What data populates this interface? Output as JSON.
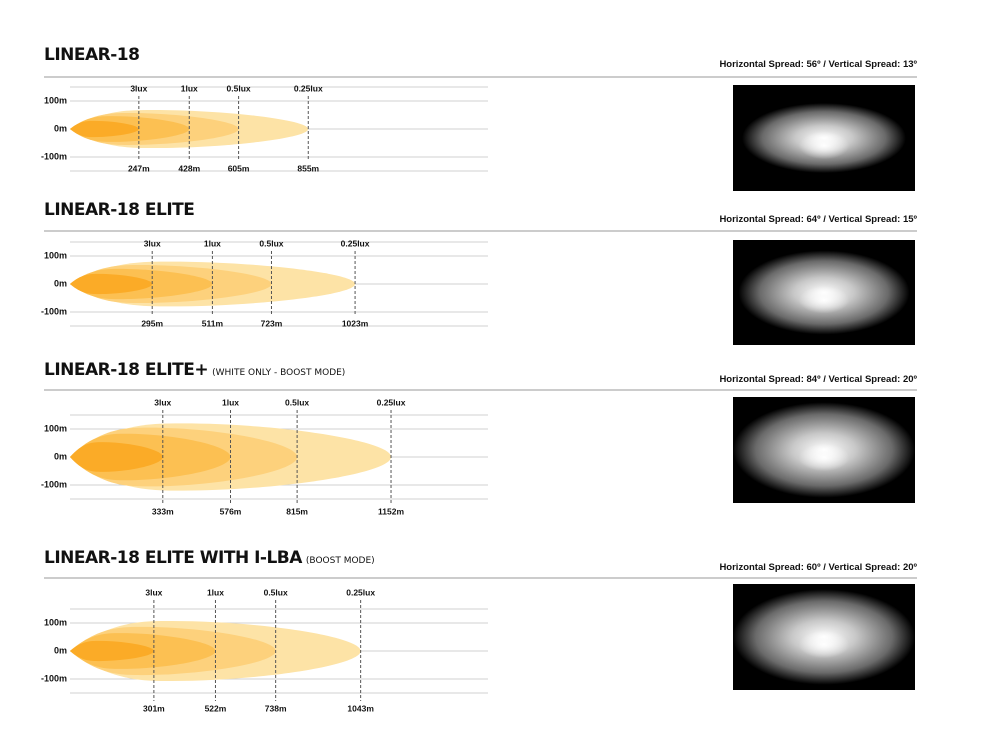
{
  "chart_data": [
    {
      "type": "beam",
      "title": "LINEAR-18",
      "horizontal_spread": "Horizontal Spread: 56º",
      "vertical_spread": "Vertical Spread: 13º",
      "xlim": [
        0,
        1500
      ],
      "ylim": [
        -150,
        150
      ],
      "yticks": [
        {
          "value": 100,
          "label": "100m"
        },
        {
          "value": 0,
          "label": "0m"
        },
        {
          "value": -100,
          "label": "-100m"
        }
      ],
      "zones": [
        {
          "lux": "0.25lux",
          "distance": 855,
          "label": "855m",
          "half_width": 68,
          "color": "#fde3a6"
        },
        {
          "lux": "0.5lux",
          "distance": 605,
          "label": "605m",
          "half_width": 57,
          "color": "#fdd17c"
        },
        {
          "lux": "1lux",
          "distance": 428,
          "label": "428m",
          "half_width": 46,
          "color": "#fcc052"
        },
        {
          "lux": "3lux",
          "distance": 247,
          "label": "247m",
          "half_width": 29,
          "color": "#fbab27"
        }
      ]
    },
    {
      "type": "beam",
      "title": "LINEAR-18 ELITE",
      "horizontal_spread": "Horizontal Spread: 64º",
      "vertical_spread": "Vertical Spread: 15º",
      "xlim": [
        0,
        1500
      ],
      "ylim": [
        -150,
        150
      ],
      "yticks": [
        {
          "value": 100,
          "label": "100m"
        },
        {
          "value": 0,
          "label": "0m"
        },
        {
          "value": -100,
          "label": "-100m"
        }
      ],
      "zones": [
        {
          "lux": "0.25lux",
          "distance": 1023,
          "label": "1023m",
          "half_width": 80,
          "color": "#fde3a6"
        },
        {
          "lux": "0.5lux",
          "distance": 723,
          "label": "723m",
          "half_width": 68,
          "color": "#fdd17c"
        },
        {
          "lux": "1lux",
          "distance": 511,
          "label": "511m",
          "half_width": 54,
          "color": "#fcc052"
        },
        {
          "lux": "3lux",
          "distance": 295,
          "label": "295m",
          "half_width": 36,
          "color": "#fbab27"
        }
      ]
    },
    {
      "type": "beam",
      "title": "LINEAR-18 ELITE+",
      "subtitle": "(WHITE ONLY - BOOST MODE)",
      "horizontal_spread": "Horizontal Spread: 84º",
      "vertical_spread": "Vertical Spread: 20º",
      "xlim": [
        0,
        1500
      ],
      "ylim": [
        -150,
        150
      ],
      "yticks": [
        {
          "value": 100,
          "label": "100m"
        },
        {
          "value": 0,
          "label": "0m"
        },
        {
          "value": -100,
          "label": "-100m"
        }
      ],
      "zones": [
        {
          "lux": "0.25lux",
          "distance": 1152,
          "label": "1152m",
          "half_width": 120,
          "color": "#fde3a6"
        },
        {
          "lux": "0.5lux",
          "distance": 815,
          "label": "815m",
          "half_width": 105,
          "color": "#fdd17c"
        },
        {
          "lux": "1lux",
          "distance": 576,
          "label": "576m",
          "half_width": 83,
          "color": "#fcc052"
        },
        {
          "lux": "3lux",
          "distance": 333,
          "label": "333m",
          "half_width": 53,
          "color": "#fbab27"
        }
      ]
    },
    {
      "type": "beam",
      "title": "LINEAR-18 ELITE WITH I-LBA",
      "subtitle": "(BOOST MODE)",
      "horizontal_spread": "Horizontal Spread: 60º",
      "vertical_spread": "Vertical Spread: 20º",
      "xlim": [
        0,
        1500
      ],
      "ylim": [
        -150,
        150
      ],
      "yticks": [
        {
          "value": 100,
          "label": "100m"
        },
        {
          "value": 0,
          "label": "0m"
        },
        {
          "value": -100,
          "label": "-100m"
        }
      ],
      "zones": [
        {
          "lux": "0.25lux",
          "distance": 1043,
          "label": "1043m",
          "half_width": 107,
          "color": "#fde3a6"
        },
        {
          "lux": "0.5lux",
          "distance": 738,
          "label": "738m",
          "half_width": 86,
          "color": "#fdd17c"
        },
        {
          "lux": "1lux",
          "distance": 522,
          "label": "522m",
          "half_width": 64,
          "color": "#fcc052"
        },
        {
          "lux": "3lux",
          "distance": 301,
          "label": "301m",
          "half_width": 36,
          "color": "#fbab27"
        }
      ]
    }
  ]
}
